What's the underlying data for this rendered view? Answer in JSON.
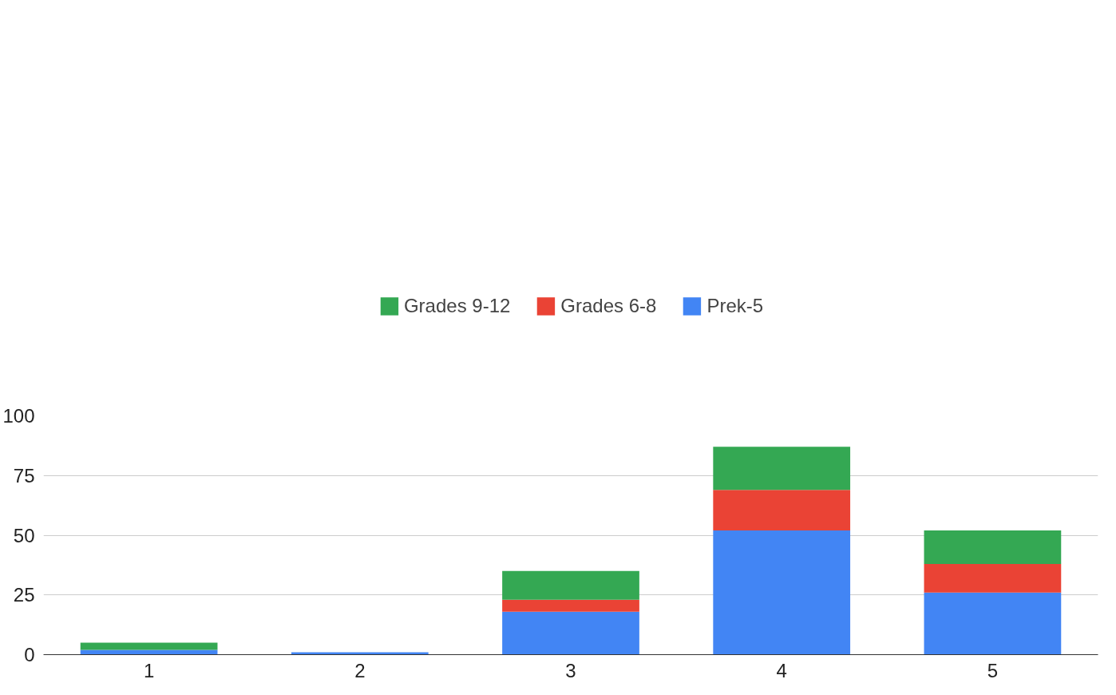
{
  "chart_data": {
    "type": "bar",
    "stacked": true,
    "categories": [
      "1",
      "2",
      "3",
      "4",
      "5"
    ],
    "series": [
      {
        "name": "Prek-5",
        "color": "#4285f4",
        "values": [
          2,
          1,
          18,
          52,
          26
        ]
      },
      {
        "name": "Grades 6-8",
        "color": "#ea4335",
        "values": [
          0,
          0,
          5,
          17,
          12
        ]
      },
      {
        "name": "Grades 9-12",
        "color": "#34a853",
        "values": [
          3,
          0,
          12,
          18,
          14
        ]
      }
    ],
    "ylim": [
      0,
      100
    ],
    "yticks": [
      0,
      25,
      50,
      75,
      100
    ],
    "grid": "y",
    "legend": "top"
  }
}
